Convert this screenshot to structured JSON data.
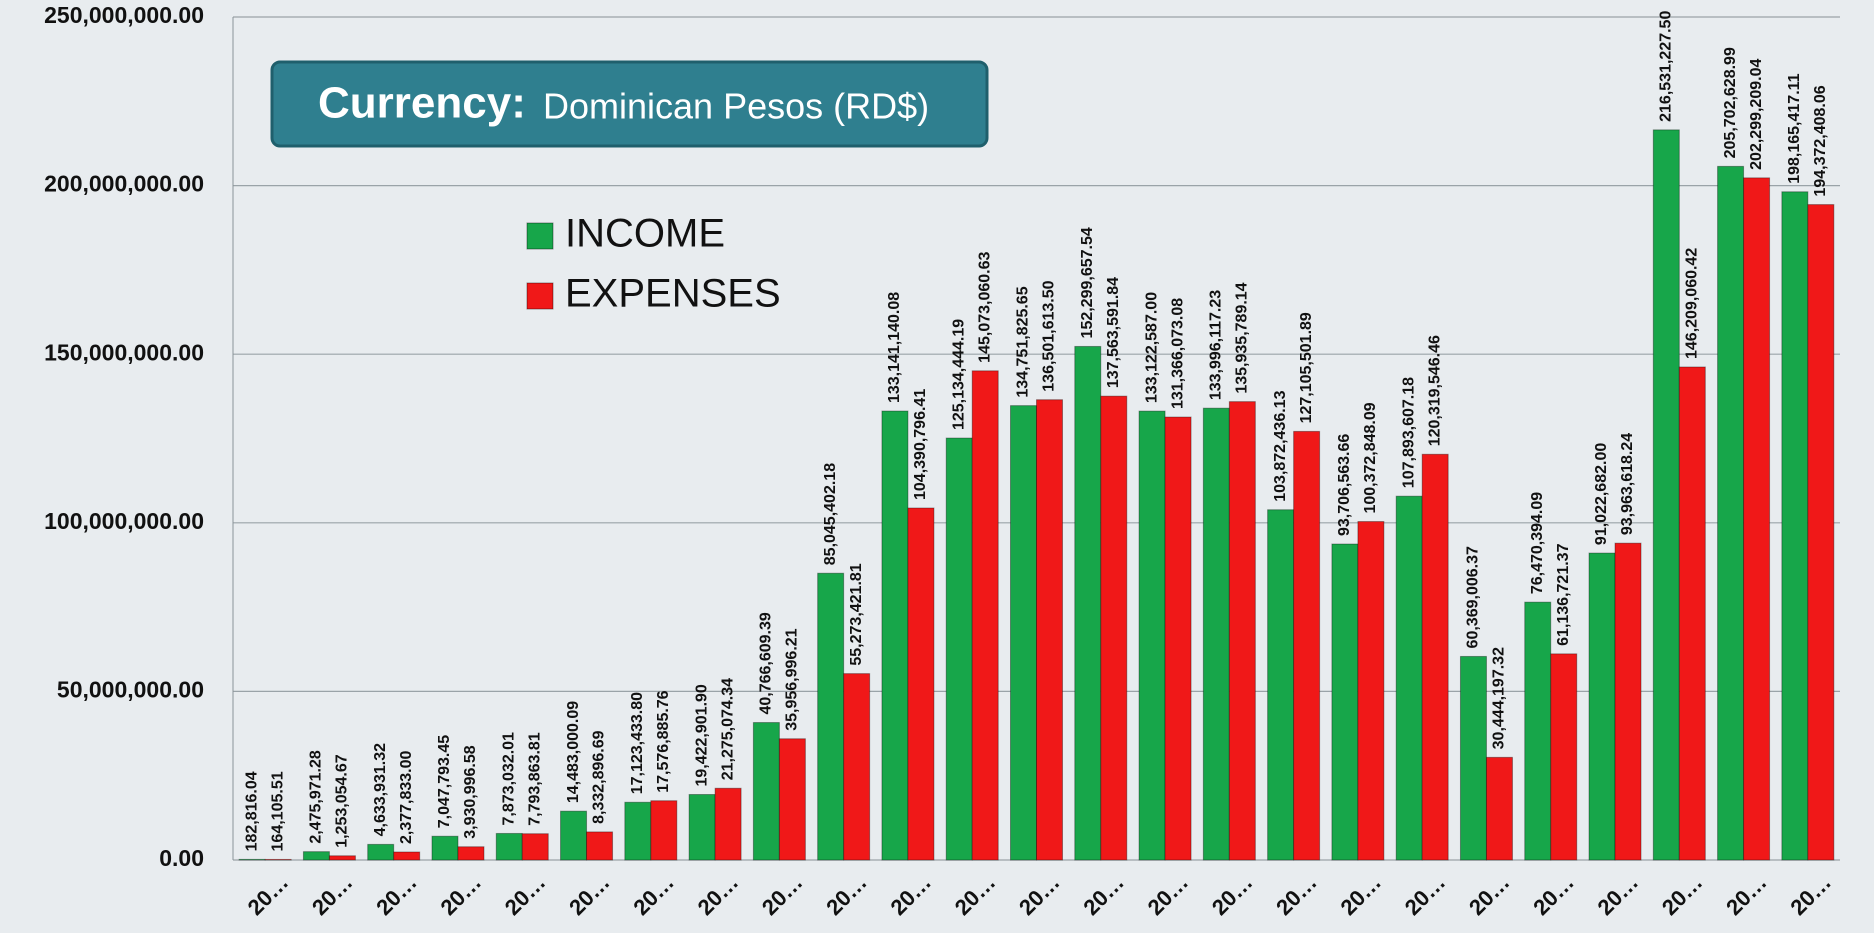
{
  "chart_data": {
    "type": "bar",
    "annotation": {
      "label": "Currency:",
      "text": "Dominican Pesos (RD$)"
    },
    "categories": [
      "20…",
      "20…",
      "20…",
      "20…",
      "20…",
      "20…",
      "20…",
      "20…",
      "20…",
      "20…",
      "20…",
      "20…",
      "20…",
      "20…",
      "20…",
      "20…",
      "20…",
      "20…",
      "20…",
      "20…",
      "20…",
      "20…",
      "20…",
      "20…",
      "20…"
    ],
    "series": [
      {
        "name": "INCOME",
        "color": "#17a64a",
        "values": [
          182816.04,
          2475971.28,
          4633931.32,
          7047793.45,
          7873032.01,
          14483000.09,
          17123433.8,
          19422901.9,
          40766609.39,
          85045402.18,
          133141140.08,
          125134444.19,
          134751825.65,
          152299657.54,
          133122587,
          133996117.23,
          103872436.13,
          93706563.66,
          107893607.18,
          60369006.37,
          76470394.09,
          91022682,
          216531227.5,
          205702628.99,
          198165417.11
        ],
        "value_labels": [
          "182,816.04",
          "2,475,971.28",
          "4,633,931.32",
          "7,047,793.45",
          "7,873,032.01",
          "14,483,000.09",
          "17,123,433.80",
          "19,422,901.90",
          "40,766,609.39",
          "85,045,402.18",
          "133,141,140.08",
          "125,134,444.19",
          "134,751,825.65",
          "152,299,657.54",
          "133,122,587.00",
          "133,996,117.23",
          "103,872,436.13",
          "93,706,563.66",
          "107,893,607.18",
          "60,369,006.37",
          "76,470,394.09",
          "91,022,682.00",
          "216,531,227.50",
          "205,702,628.99",
          "198,165,417.11"
        ]
      },
      {
        "name": "EXPENSES",
        "color": "#f01818",
        "values": [
          164105.51,
          1253054.67,
          2377833,
          3930996.58,
          7793863.81,
          8332896.69,
          17576885.76,
          21275074.34,
          35956996.21,
          55273421.81,
          104390796.41,
          145073060.63,
          136501613.5,
          137563591.84,
          131366073.08,
          135935789.14,
          127105501.89,
          100372848.09,
          120319546.46,
          30444197.32,
          61136721.37,
          93963618.24,
          146209060.42,
          202299209.04,
          194372408.06
        ],
        "value_labels": [
          "164,105.51",
          "1,253,054.67",
          "2,377,833.00",
          "3,930,996.58",
          "7,793,863.81",
          "8,332,896.69",
          "17,576,885.76",
          "21,275,074.34",
          "35,956,996.21",
          "55,273,421.81",
          "104,390,796.41",
          "145,073,060.63",
          "136,501,613.50",
          "137,563,591.84",
          "131,366,073.08",
          "135,935,789.14",
          "127,105,501.89",
          "100,372,848.09",
          "120,319,546.46",
          "30,444,197.32",
          "61,136,721.37",
          "93,963,618.24",
          "146,209,060.42",
          "202,299,209.04",
          "194,372,408.06"
        ]
      }
    ],
    "ylim": [
      0,
      250000000
    ],
    "yticks": [
      {
        "value": 0,
        "label": "0.00"
      },
      {
        "value": 50000000,
        "label": "50,000,000.00"
      },
      {
        "value": 100000000,
        "label": "100,000,000.00"
      },
      {
        "value": 150000000,
        "label": "150,000,000.00"
      },
      {
        "value": 200000000,
        "label": "200,000,000.00"
      },
      {
        "value": 250000000,
        "label": "250,000,000.00"
      }
    ],
    "grid": true
  }
}
